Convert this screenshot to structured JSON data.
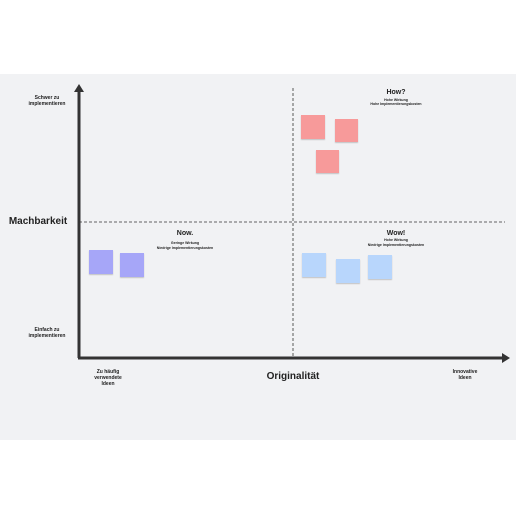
{
  "axes": {
    "y_label": "Machbarkeit",
    "y_top": "Schwer zu implementieren",
    "y_bottom": "Einfach zu implementieren",
    "x_label": "Originalität",
    "x_left": "Zu häufig verwendete Ideen",
    "x_right": "Innovative Ideen"
  },
  "quadrants": [
    {
      "title": "How?",
      "line1": "Hohe Wirkung",
      "line2": "Hohe Implementierungskosten"
    },
    {
      "title": "Now.",
      "line1": "Geringe Wirkung",
      "line2": "Niedrige Implementierungskosten"
    },
    {
      "title": "Wow!",
      "line1": "Hohe Wirkung",
      "line2": "Niedrige Implementierungskosten"
    }
  ]
}
